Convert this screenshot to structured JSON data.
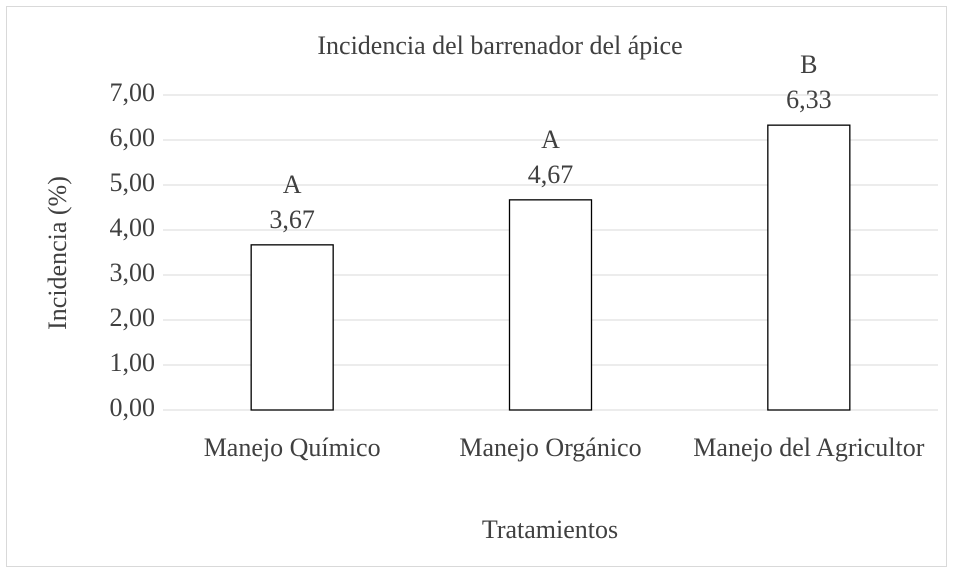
{
  "chart_data": {
    "type": "bar",
    "title": "Incidencia del barrenador del ápice",
    "categories": [
      "Manejo Químico",
      "Manejo Orgánico",
      "Manejo del Agricultor"
    ],
    "values": [
      3.67,
      4.67,
      6.33
    ],
    "value_labels": [
      "3,67",
      "4,67",
      "6,33"
    ],
    "group_labels": [
      "A",
      "A",
      "B"
    ],
    "color": "#ffffff",
    "ylim": [
      0,
      7
    ],
    "yticks": [
      {
        "value": 0,
        "label": "0,00"
      },
      {
        "value": 1,
        "label": "1,00"
      },
      {
        "value": 2,
        "label": "2,00"
      },
      {
        "value": 3,
        "label": "3,00"
      },
      {
        "value": 4,
        "label": "4,00"
      },
      {
        "value": 5,
        "label": "5,00"
      },
      {
        "value": 6,
        "label": "6,00"
      },
      {
        "value": 7,
        "label": "7,00"
      }
    ],
    "y_label": "Incidencia (%)",
    "x_label": "Tratamientos",
    "grid": true
  }
}
